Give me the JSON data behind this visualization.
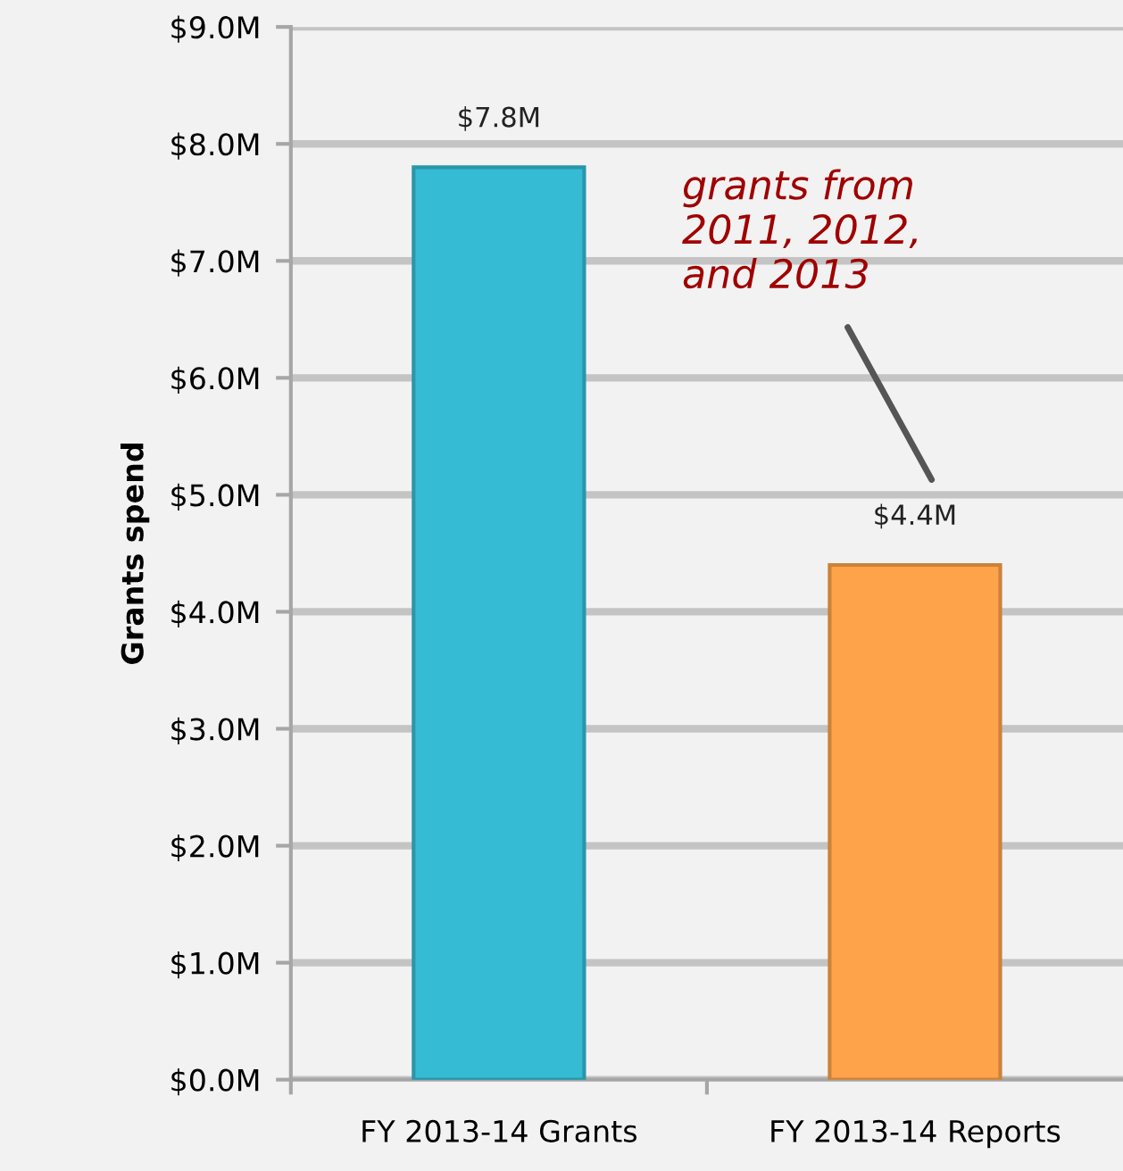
{
  "chart_data": {
    "type": "bar",
    "ylabel": "Grants spend",
    "categories": [
      "FY 2013-14 Grants",
      "FY 2013-14 Reports"
    ],
    "values": [
      7.8,
      4.4
    ],
    "colors": [
      "#35bcd4",
      "#ffa34a"
    ],
    "value_labels": [
      "$7.8M",
      "$4.4M"
    ],
    "ylim": [
      0,
      9
    ],
    "yticks": [
      {
        "value": 0,
        "label": "$0.0M"
      },
      {
        "value": 1,
        "label": "$1.0M"
      },
      {
        "value": 2,
        "label": "$2.0M"
      },
      {
        "value": 3,
        "label": "$3.0M"
      },
      {
        "value": 4,
        "label": "$4.0M"
      },
      {
        "value": 5,
        "label": "$5.0M"
      },
      {
        "value": 6,
        "label": "$6.0M"
      },
      {
        "value": 7,
        "label": "$7.0M"
      },
      {
        "value": 8,
        "label": "$8.0M"
      },
      {
        "value": 9,
        "label": "$9.0M"
      }
    ],
    "grid": "y",
    "annotations": [
      "grants from\n2011, 2012,\nand 2013"
    ]
  }
}
